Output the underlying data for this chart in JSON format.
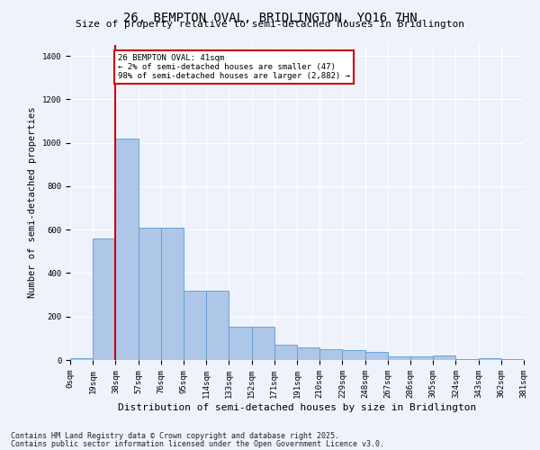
{
  "title": "26, BEMPTON OVAL, BRIDLINGTON, YO16 7HN",
  "subtitle": "Size of property relative to semi-detached houses in Bridlington",
  "xlabel": "Distribution of semi-detached houses by size in Bridlington",
  "ylabel": "Number of semi-detached properties",
  "annotation_title": "26 BEMPTON OVAL: 41sqm",
  "annotation_line1": "← 2% of semi-detached houses are smaller (47)",
  "annotation_line2": "98% of semi-detached houses are larger (2,882) →",
  "footnote1": "Contains HM Land Registry data © Crown copyright and database right 2025.",
  "footnote2": "Contains public sector information licensed under the Open Government Licence v3.0.",
  "bar_values": [
    10,
    560,
    1020,
    610,
    610,
    320,
    320,
    155,
    155,
    70,
    60,
    50,
    45,
    38,
    15,
    15,
    20,
    5,
    10,
    5
  ],
  "bin_labels": [
    "0sqm",
    "19sqm",
    "38sqm",
    "57sqm",
    "76sqm",
    "95sqm",
    "114sqm",
    "133sqm",
    "152sqm",
    "171sqm",
    "191sqm",
    "210sqm",
    "229sqm",
    "248sqm",
    "267sqm",
    "286sqm",
    "305sqm",
    "324sqm",
    "343sqm",
    "362sqm",
    "381sqm"
  ],
  "bar_color": "#aec6e8",
  "bar_edge_color": "#5b9bd5",
  "vline_color": "#cc0000",
  "annotation_box_color": "#cc0000",
  "background_color": "#eef2fb",
  "ylim": [
    0,
    1450
  ],
  "yticks": [
    0,
    200,
    400,
    600,
    800,
    1000,
    1200,
    1400
  ],
  "grid_color": "#ffffff",
  "title_fontsize": 10,
  "subtitle_fontsize": 8,
  "axis_label_fontsize": 7.5,
  "tick_fontsize": 6.5,
  "annotation_fontsize": 6.5,
  "footnote_fontsize": 6
}
